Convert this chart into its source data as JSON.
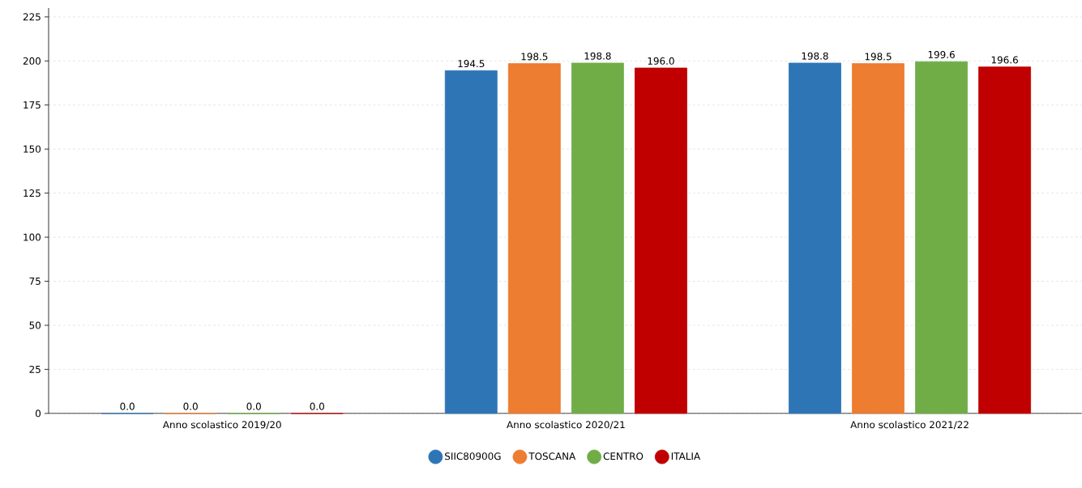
{
  "chart_data": {
    "type": "bar",
    "categories": [
      "Anno scolastico 2019/20",
      "Anno scolastico 2020/21",
      "Anno scolastico 2021/22"
    ],
    "series": [
      {
        "name": "SIIC80900G",
        "color": "#2e75b6",
        "values": [
          0.0,
          194.5,
          198.8
        ],
        "value_labels": [
          "0.0",
          "194.5",
          "198.8"
        ]
      },
      {
        "name": "TOSCANA",
        "color": "#ed7d31",
        "values": [
          0.0,
          198.5,
          198.5
        ],
        "value_labels": [
          "0.0",
          "198.5",
          "198.5"
        ]
      },
      {
        "name": "CENTRO",
        "color": "#70ad47",
        "values": [
          0.0,
          198.8,
          199.6
        ],
        "value_labels": [
          "0.0",
          "198.8",
          "199.6"
        ]
      },
      {
        "name": "ITALIA",
        "color": "#c00000",
        "values": [
          0.0,
          196.0,
          196.6
        ],
        "value_labels": [
          "0.0",
          "196.0",
          "196.6"
        ]
      }
    ],
    "ylim": [
      0,
      230
    ],
    "yticks": [
      0,
      25,
      50,
      75,
      100,
      125,
      150,
      175,
      200,
      225
    ],
    "grid": "y",
    "legend": "bottom"
  }
}
